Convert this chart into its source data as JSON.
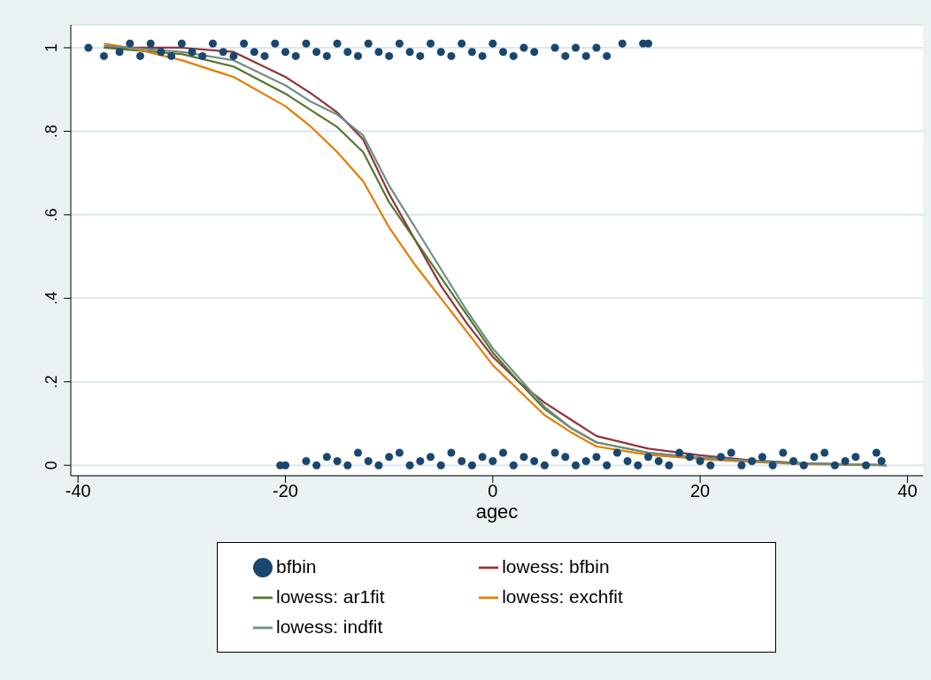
{
  "chart_data": {
    "type": "line",
    "xlabel": "agec",
    "xlim": [
      -40.7,
      41.5
    ],
    "ylim": [
      -0.025,
      1.055
    ],
    "xticks": [
      -40,
      -20,
      0,
      20,
      40
    ],
    "yticks": [
      {
        "value": 0,
        "label": "0"
      },
      {
        "value": 0.2,
        "label": ".2"
      },
      {
        "value": 0.4,
        "label": ".4"
      },
      {
        "value": 0.6,
        "label": ".6"
      },
      {
        "value": 0.8,
        "label": ".8"
      },
      {
        "value": 1,
        "label": "1"
      }
    ],
    "grid": "y",
    "legend": "bottom",
    "series": [
      {
        "name": "bfbin",
        "type": "scatter",
        "marker": "circle",
        "color": "#1a476f",
        "x": [
          -39,
          -37.5,
          -36,
          -35,
          -34,
          -33,
          -32,
          -31,
          -30,
          -29,
          -28,
          -27,
          -26,
          -25,
          -24,
          -23,
          -22,
          -21,
          -20,
          -19,
          -18,
          -17,
          -16,
          -15,
          -14,
          -13,
          -12,
          -11,
          -10,
          -9,
          -8,
          -7,
          -6,
          -5,
          -4,
          -3,
          -2,
          -1,
          0,
          1,
          2,
          3,
          4,
          6,
          7,
          8,
          9,
          10,
          11,
          12.5,
          14.5,
          15,
          -20.5,
          -20,
          -18,
          -17,
          -16,
          -15,
          -14,
          -13,
          -12,
          -11,
          -10,
          -9,
          -8,
          -7,
          -6,
          -5,
          -4,
          -3,
          -2,
          -1,
          0,
          1,
          2,
          3,
          4,
          5,
          6,
          7,
          8,
          9,
          10,
          11,
          12,
          13,
          14,
          15,
          16,
          17,
          18,
          19,
          20,
          21,
          22,
          23,
          24,
          25,
          26,
          27,
          28,
          29,
          30,
          31,
          32,
          33,
          34,
          35,
          36,
          37,
          37.5
        ],
        "values": [
          1.0,
          0.98,
          0.99,
          1.01,
          0.98,
          1.01,
          0.99,
          0.98,
          1.01,
          0.99,
          0.98,
          1.01,
          0.99,
          0.98,
          1.01,
          0.99,
          0.98,
          1.01,
          0.99,
          0.98,
          1.01,
          0.99,
          0.98,
          1.01,
          0.99,
          0.98,
          1.01,
          0.99,
          0.98,
          1.01,
          0.99,
          0.98,
          1.01,
          0.99,
          0.98,
          1.01,
          0.99,
          0.98,
          1.01,
          0.99,
          0.98,
          1.0,
          0.99,
          1.0,
          0.98,
          1.0,
          0.98,
          1.0,
          0.98,
          1.01,
          1.01,
          1.01,
          0,
          0,
          0.01,
          0,
          0.02,
          0.01,
          0,
          0.03,
          0.01,
          0,
          0.02,
          0.03,
          0,
          0.01,
          0.02,
          0,
          0.03,
          0.01,
          0,
          0.02,
          0.01,
          0.03,
          0,
          0.02,
          0.01,
          0,
          0.03,
          0.02,
          0,
          0.01,
          0.02,
          0,
          0.03,
          0.01,
          0,
          0.02,
          0.01,
          0,
          0.03,
          0.02,
          0.01,
          0,
          0.02,
          0.03,
          0,
          0.01,
          0.02,
          0,
          0.03,
          0.01,
          0,
          0.02,
          0.03,
          0,
          0.01,
          0.02,
          0,
          0.03,
          0.01
        ]
      },
      {
        "name": "lowess: bfbin",
        "color": "#90353b",
        "x": [
          -37.5,
          -35,
          -30,
          -25,
          -20,
          -17.5,
          -15,
          -12.5,
          -10,
          -7.5,
          -5,
          -2.5,
          0,
          2.5,
          5,
          7.5,
          10,
          15,
          20,
          25,
          30,
          38
        ],
        "values": [
          1.0,
          1.0,
          1.0,
          0.99,
          0.93,
          0.89,
          0.845,
          0.78,
          0.65,
          0.54,
          0.43,
          0.34,
          0.26,
          0.2,
          0.15,
          0.11,
          0.07,
          0.04,
          0.024,
          0.012,
          0.005,
          0
        ]
      },
      {
        "name": "lowess: ar1fit",
        "color": "#55752f",
        "x": [
          -37.5,
          -35,
          -30,
          -25,
          -20,
          -17.5,
          -15,
          -12.5,
          -10,
          -7.5,
          -5,
          -2.5,
          0,
          2.5,
          5,
          7.5,
          10,
          15,
          20,
          25,
          30,
          38
        ],
        "values": [
          1.0,
          0.995,
          0.985,
          0.955,
          0.89,
          0.85,
          0.81,
          0.75,
          0.63,
          0.54,
          0.45,
          0.36,
          0.27,
          0.2,
          0.135,
          0.09,
          0.055,
          0.03,
          0.018,
          0.01,
          0.004,
          0
        ]
      },
      {
        "name": "lowess: exchfit",
        "color": "#e37e00",
        "x": [
          -37.5,
          -35,
          -30,
          -25,
          -20,
          -17.5,
          -15,
          -12.5,
          -10,
          -7.5,
          -5,
          -2.5,
          0,
          2.5,
          5,
          7.5,
          10,
          15,
          20,
          25,
          30,
          38
        ],
        "values": [
          1.01,
          1.0,
          0.97,
          0.93,
          0.86,
          0.81,
          0.75,
          0.68,
          0.57,
          0.48,
          0.4,
          0.32,
          0.24,
          0.18,
          0.12,
          0.08,
          0.045,
          0.025,
          0.015,
          0.008,
          0.003,
          0
        ]
      },
      {
        "name": "lowess: indfit",
        "color": "#6e8e84",
        "x": [
          -37.5,
          -35,
          -30,
          -25,
          -20,
          -17.5,
          -15,
          -12.5,
          -10,
          -7.5,
          -5,
          -2.5,
          0,
          2.5,
          5,
          7.5,
          10,
          15,
          20,
          25,
          30,
          38
        ],
        "values": [
          1.005,
          1.0,
          0.99,
          0.97,
          0.91,
          0.87,
          0.84,
          0.79,
          0.67,
          0.57,
          0.47,
          0.37,
          0.28,
          0.21,
          0.14,
          0.09,
          0.055,
          0.03,
          0.018,
          0.01,
          0.004,
          0
        ]
      }
    ]
  }
}
